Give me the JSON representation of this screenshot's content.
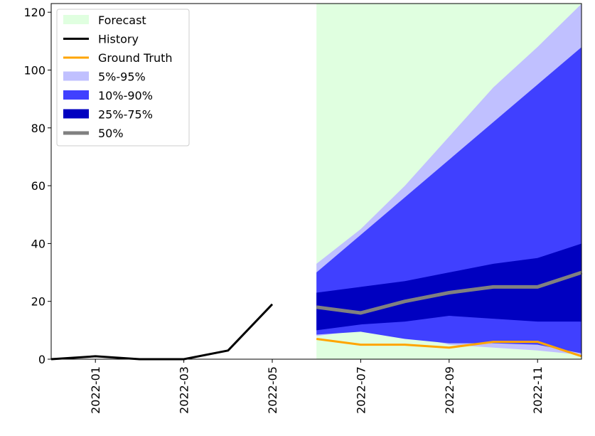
{
  "chart_data": {
    "type": "area",
    "title": "",
    "xlabel": "",
    "ylabel": "",
    "x": [
      "2021-12",
      "2022-01",
      "2022-02",
      "2022-03",
      "2022-04",
      "2022-05",
      "2022-06",
      "2022-07",
      "2022-08",
      "2022-09",
      "2022-10",
      "2022-11",
      "2022-12"
    ],
    "xtick_labels": [
      "2022-01",
      "2022-03",
      "2022-05",
      "2022-07",
      "2022-09",
      "2022-11"
    ],
    "ylim": [
      0,
      123
    ],
    "yticks": [
      0,
      20,
      40,
      60,
      80,
      100,
      120
    ],
    "forecast_region": {
      "label": "Forecast",
      "start": "2022-06",
      "end": "2022-12",
      "color": "#e0ffe0"
    },
    "history": {
      "label": "History",
      "color": "#000000",
      "x": [
        "2021-12",
        "2022-01",
        "2022-02",
        "2022-03",
        "2022-04",
        "2022-05"
      ],
      "values": [
        0,
        1,
        0,
        0,
        3,
        19
      ]
    },
    "ground_truth": {
      "label": "Ground Truth",
      "color": "#ffa500",
      "x": [
        "2022-06",
        "2022-07",
        "2022-08",
        "2022-09",
        "2022-10",
        "2022-11",
        "2022-12"
      ],
      "values": [
        7,
        5,
        5,
        4,
        6,
        6,
        1
      ]
    },
    "bands": [
      {
        "label": "5%-95%",
        "color": "#c0c0ff",
        "lower": [
          8,
          10,
          8.5,
          5,
          4,
          3,
          1.5
        ],
        "upper": [
          33,
          45,
          60,
          77,
          94,
          108,
          123
        ]
      },
      {
        "label": "10%-90%",
        "color": "#4040ff",
        "lower": [
          8.5,
          9.5,
          7,
          5.5,
          5.5,
          5,
          2
        ],
        "upper": [
          30,
          43,
          56,
          69,
          82,
          95,
          108
        ]
      },
      {
        "label": "25%-75%",
        "color": "#0000c0",
        "lower": [
          10,
          12,
          13,
          15,
          14,
          13,
          13
        ],
        "upper": [
          23,
          25,
          27,
          30,
          33,
          35,
          40
        ]
      }
    ],
    "median": {
      "label": "50%",
      "color": "#808080",
      "x": [
        "2022-06",
        "2022-07",
        "2022-08",
        "2022-09",
        "2022-10",
        "2022-11",
        "2022-12"
      ],
      "values": [
        18,
        16,
        20,
        23,
        25,
        25,
        30
      ]
    },
    "legend": {
      "position": "top-left",
      "entries": [
        "Forecast",
        "History",
        "Ground Truth",
        "5%-95%",
        "10%-90%",
        "25%-75%",
        "50%"
      ]
    }
  }
}
